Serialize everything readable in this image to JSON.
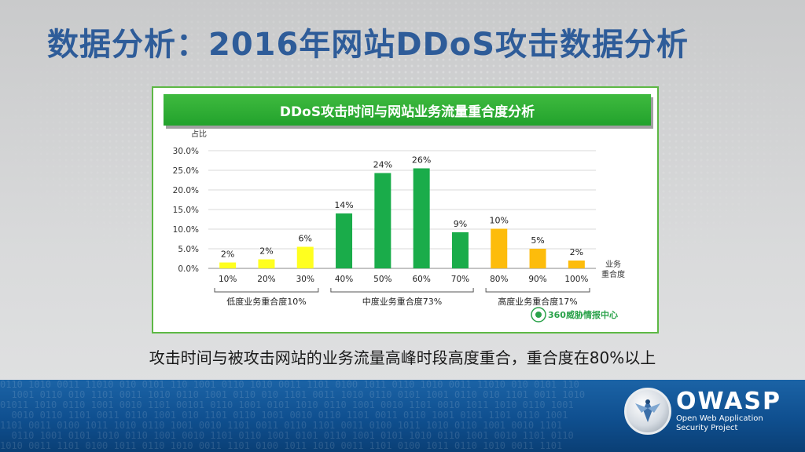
{
  "slide": {
    "title": "数据分析：2016年网站DDoS攻击数据分析",
    "caption": "攻击时间与被攻击网站的业务流量高峰时段高度重合，重合度在80%以上"
  },
  "chart_data": {
    "type": "bar",
    "title": "DDoS攻击时间与网站业务流量重合度分析",
    "ylabel": "占比",
    "xlabel": "业务\n重合度",
    "ylim": [
      0,
      30
    ],
    "yticks": [
      "0.0%",
      "5.0%",
      "10.0%",
      "15.0%",
      "20.0%",
      "25.0%",
      "30.0%"
    ],
    "gridlines": true,
    "categories": [
      "10%",
      "20%",
      "30%",
      "40%",
      "50%",
      "60%",
      "70%",
      "80%",
      "90%",
      "100%"
    ],
    "values": [
      2,
      2,
      6,
      14,
      24,
      26,
      9,
      10,
      5,
      2
    ],
    "value_labels": [
      "2%",
      "2%",
      "6%",
      "14%",
      "24%",
      "26%",
      "9%",
      "10%",
      "5%",
      "2%"
    ],
    "bar_values": [
      1.5,
      2.3,
      5.5,
      14,
      24.3,
      25.5,
      9.2,
      10.1,
      5.0,
      2.0
    ],
    "groups": [
      {
        "label": "低度业务重合度10%",
        "from": 0,
        "to": 2,
        "color": "#ffff1f"
      },
      {
        "label": "中度业务重合度73%",
        "from": 3,
        "to": 6,
        "color": "#1aac4a"
      },
      {
        "label": "高度业务重合度17%",
        "from": 7,
        "to": 9,
        "color": "#fdbc0b"
      }
    ],
    "watermark": "360威胁情报中心"
  },
  "footer": {
    "brand": "OWASP",
    "subtitle_line1": "Open Web Application",
    "subtitle_line2": "Security Project"
  }
}
